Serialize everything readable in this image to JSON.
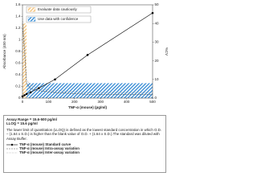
{
  "chart_data": {
    "type": "line",
    "y_label": "Absorbance (450 nm)",
    "y2_label": "%CV",
    "x_label": "TNF-α (mouse) (pg/ml)",
    "x": [
      0,
      7.8,
      15.6,
      31.25,
      62.5,
      125,
      250,
      500
    ],
    "xlim": [
      0,
      500
    ],
    "xticks": [
      0,
      100,
      200,
      300,
      400,
      500
    ],
    "ylim": [
      0,
      1.6
    ],
    "yticks": [
      0,
      0.2,
      0.4,
      0.6,
      0.8,
      1,
      1.2,
      1.4,
      1.6
    ],
    "y2lim": [
      0,
      50
    ],
    "y2ticks": [
      0,
      10,
      20,
      30,
      40,
      50
    ],
    "series": [
      {
        "name": "TNF-α (mouse) Standard curve",
        "color": "#000000",
        "style": "solid",
        "markers": true,
        "values": [
          0.03,
          0.05,
          0.07,
          0.1,
          0.17,
          0.32,
          0.74,
          1.46
        ]
      },
      {
        "name": "TNF-α (mouse) Intra-assay variation",
        "color": "#555555",
        "style": "dashed",
        "axis": "y2",
        "values": [
          40,
          25,
          8,
          5,
          4,
          3,
          2,
          2
        ]
      },
      {
        "name": "TNF-α (mouse) Inter-assay variation",
        "color": "#888888",
        "style": "dotted",
        "axis": "y2",
        "values": [
          45,
          30,
          10,
          7,
          5,
          4,
          3,
          3
        ]
      }
    ],
    "zones": [
      {
        "label": "Evaluate data cautiously",
        "color": "#f3c47f",
        "x": [
          0,
          15.6
        ],
        "y2": 40
      },
      {
        "label": "Use data with confidence",
        "color": "#3d8fd6",
        "x": [
          15.6,
          500
        ],
        "y2": 8
      }
    ]
  },
  "doc": {
    "assay_range": "Assay Range = 15.6-500 pg/ml",
    "lloq": "LLOQ = 15.6 pg/ml",
    "note": "The lower limit of quantitation (LLOQ) is defined as the lowest standard concentration in which O.D. – (1.64 x S.D.) is higher than the blank value of O.D. + (1.64 x S.D.).The standard was diluted with Assay Buffer."
  }
}
